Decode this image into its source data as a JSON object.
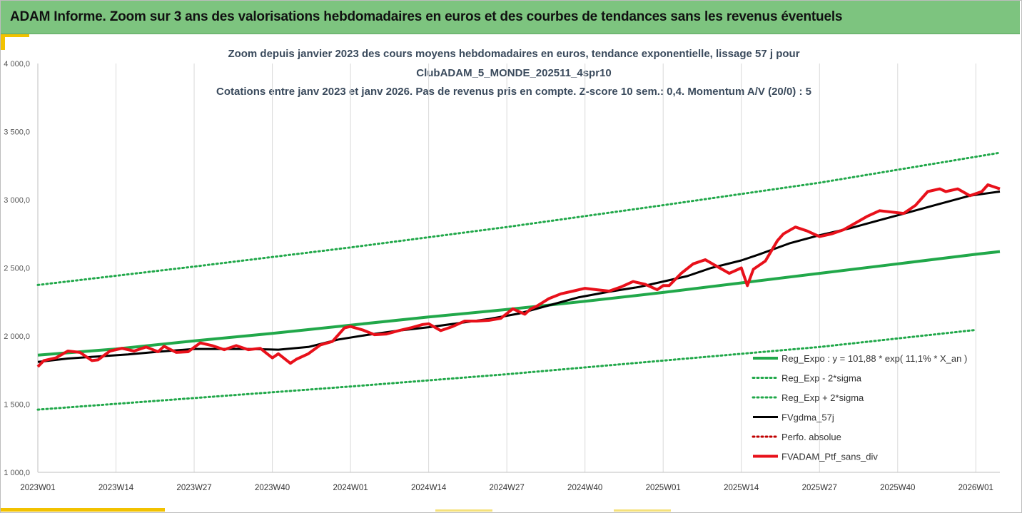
{
  "banner": {
    "title": "ADAM Informe. Zoom sur 3 ans des valorisations hebdomadaires en euros et des courbes de tendances sans les revenus éventuels"
  },
  "colors": {
    "banner_bg": "#7dc47f",
    "accent": "#f2c200",
    "trend_green": "#21a84a",
    "smooth_black": "#000000",
    "portfolio_red": "#e8101a",
    "perf_red": "#c00000"
  },
  "chart_data": {
    "type": "line",
    "title_lines": [
      "Zoom depuis janvier 2023 des cours moyens hebdomadaires  en euros, tendance exponentielle, lissage 57 j pour",
      "ClubADAM_5_MONDE_202511_4spr10",
      "Cotations entre janv 2023 et janv 2026. Pas de revenus pris en compte. Z-score 10 sem.: 0,4. Momentum A/V (20/0) : 5"
    ],
    "ylim": [
      1000,
      4000
    ],
    "yticks": [
      "1 000,0",
      "1 500,0",
      "2 000,0",
      "2 500,0",
      "3 000,0",
      "3 500,0",
      "4 000,0"
    ],
    "ytick_values": [
      1000,
      1500,
      2000,
      2500,
      3000,
      3500,
      4000
    ],
    "xlim": [
      0,
      160
    ],
    "xticks": [
      "2023W01",
      "2023W14",
      "2023W27",
      "2023W40",
      "2024W01",
      "2024W14",
      "2024W27",
      "2024W40",
      "2025W01",
      "2025W14",
      "2025W27",
      "2025W40",
      "2026W01"
    ],
    "xtick_weeks": [
      0,
      13,
      26,
      39,
      52,
      65,
      78,
      91,
      104,
      117,
      130,
      143,
      156
    ],
    "grid": "vertical",
    "legend_position": "bottom-right",
    "series": [
      {
        "name": "Reg_Expo : y = 101,88 * exp( 11,1% *  X_an )",
        "style": "solid-thick",
        "color": "#21a84a",
        "x": [
          0,
          13,
          26,
          39,
          52,
          65,
          78,
          91,
          104,
          117,
          130,
          143,
          156,
          160
        ],
        "values": [
          1860,
          1905,
          1965,
          2020,
          2080,
          2140,
          2195,
          2255,
          2320,
          2390,
          2460,
          2530,
          2600,
          2620
        ]
      },
      {
        "name": "Reg_Exp - 2*sigma",
        "style": "dotted",
        "color": "#21a84a",
        "x": [
          0,
          26,
          52,
          78,
          104,
          130,
          156
        ],
        "values": [
          1460,
          1545,
          1630,
          1720,
          1820,
          1920,
          2045
        ]
      },
      {
        "name": "Reg_Exp + 2*sigma",
        "style": "dotted",
        "color": "#21a84a",
        "x": [
          0,
          26,
          52,
          78,
          104,
          130,
          160
        ],
        "values": [
          2375,
          2510,
          2650,
          2800,
          2960,
          3125,
          3345
        ]
      },
      {
        "name": "FVgdma_57j",
        "style": "solid",
        "color": "#000000",
        "x": [
          0,
          5,
          10,
          15,
          20,
          26,
          30,
          35,
          40,
          45,
          50,
          55,
          60,
          65,
          70,
          75,
          80,
          85,
          90,
          95,
          100,
          104,
          108,
          112,
          117,
          120,
          125,
          130,
          135,
          140,
          145,
          150,
          155,
          160
        ],
        "values": [
          1810,
          1835,
          1850,
          1865,
          1885,
          1905,
          1905,
          1905,
          1900,
          1920,
          1975,
          2010,
          2040,
          2065,
          2095,
          2125,
          2165,
          2225,
          2285,
          2325,
          2360,
          2400,
          2440,
          2500,
          2555,
          2600,
          2680,
          2740,
          2790,
          2850,
          2910,
          2970,
          3030,
          3060
        ]
      },
      {
        "name": "Perfo. absolue",
        "style": "dotted",
        "color": "#c00000",
        "x": [],
        "values": []
      },
      {
        "name": "FVADAM_Ptf_sans_div",
        "style": "solid-thick",
        "color": "#e8101a",
        "x": [
          0,
          1,
          3,
          5,
          7,
          9,
          10,
          12,
          14,
          16,
          18,
          20,
          21,
          23,
          25,
          27,
          29,
          31,
          33,
          35,
          37,
          39,
          40,
          42,
          43,
          45,
          47,
          49,
          51,
          52,
          54,
          56,
          58,
          60,
          62,
          64,
          65,
          67,
          69,
          71,
          73,
          75,
          77,
          79,
          81,
          82,
          83,
          85,
          87,
          89,
          91,
          93,
          95,
          97,
          99,
          101,
          103,
          104,
          105,
          107,
          109,
          111,
          113,
          115,
          116,
          117,
          118,
          119,
          121,
          123,
          124,
          126,
          128,
          130,
          132,
          134,
          136,
          138,
          140,
          142,
          144,
          146,
          148,
          150,
          151,
          153,
          155,
          157,
          158,
          160
        ],
        "values": [
          1775,
          1820,
          1840,
          1890,
          1880,
          1820,
          1825,
          1890,
          1910,
          1890,
          1920,
          1885,
          1925,
          1880,
          1885,
          1950,
          1930,
          1900,
          1930,
          1900,
          1910,
          1840,
          1870,
          1800,
          1830,
          1870,
          1935,
          1960,
          2060,
          2070,
          2045,
          2010,
          2015,
          2040,
          2060,
          2085,
          2090,
          2040,
          2070,
          2110,
          2110,
          2115,
          2130,
          2200,
          2160,
          2200,
          2220,
          2275,
          2310,
          2330,
          2350,
          2340,
          2330,
          2360,
          2400,
          2380,
          2340,
          2370,
          2370,
          2460,
          2530,
          2560,
          2510,
          2460,
          2480,
          2500,
          2370,
          2490,
          2550,
          2700,
          2750,
          2800,
          2770,
          2730,
          2750,
          2780,
          2830,
          2880,
          2920,
          2910,
          2900,
          2960,
          3060,
          3080,
          3060,
          3080,
          3030,
          3060,
          3110,
          3080
        ]
      }
    ]
  }
}
